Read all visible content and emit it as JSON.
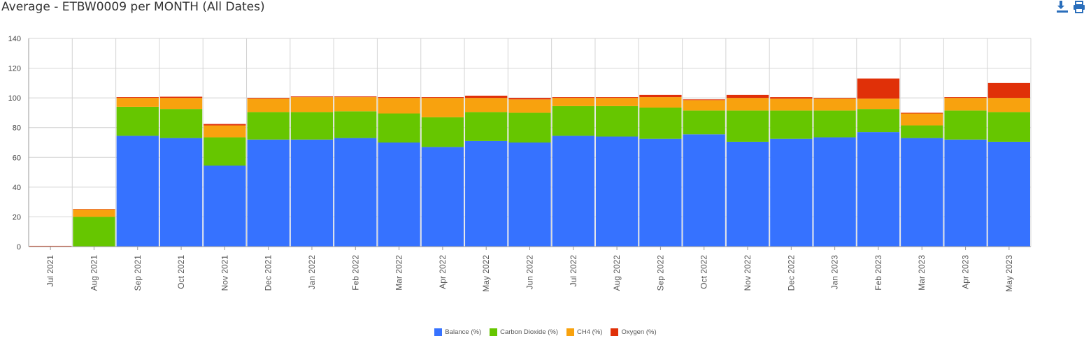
{
  "title": "Average - ETBW0009 per MONTH (All Dates)",
  "toolbar": {
    "download_icon": "download-icon",
    "print_icon": "print-icon",
    "icon_color": "#2a6ebb"
  },
  "chart_data": {
    "type": "bar",
    "stacked": true,
    "title": "Average - ETBW0009 per MONTH (All Dates)",
    "xlabel": "",
    "ylabel": "",
    "ylim": [
      0,
      140
    ],
    "yticks": [
      0,
      20,
      40,
      60,
      80,
      100,
      120,
      140
    ],
    "grid": true,
    "legend_position": "bottom",
    "categories": [
      "Jul 2021",
      "Aug 2021",
      "Sep 2021",
      "Oct 2021",
      "Nov 2021",
      "Dec 2021",
      "Jan 2022",
      "Feb 2022",
      "Mar 2022",
      "Apr 2022",
      "May 2022",
      "Jun 2022",
      "Jul 2022",
      "Aug 2022",
      "Sep 2022",
      "Oct 2022",
      "Nov 2022",
      "Dec 2022",
      "Jan 2023",
      "Feb 2023",
      "Mar 2023",
      "Apr 2023",
      "May 2023"
    ],
    "series": [
      {
        "name": "Balance (%)",
        "color": "#3672ff",
        "values": [
          0,
          0,
          74.5,
          73,
          54.5,
          72,
          72,
          73,
          70,
          67,
          71,
          70,
          74.5,
          74,
          72.5,
          75.5,
          70.5,
          72.5,
          73.5,
          77,
          73,
          72,
          70.5
        ]
      },
      {
        "name": "Carbon Dioxide (%)",
        "color": "#66c600",
        "values": [
          0,
          20,
          19.5,
          19.5,
          19,
          18.5,
          18.5,
          18,
          19.5,
          20,
          19.5,
          20,
          20,
          20.5,
          21,
          16,
          21,
          19,
          18,
          15.5,
          8.5,
          19.5,
          20
        ]
      },
      {
        "name": "CH4 (%)",
        "color": "#f8a20e",
        "values": [
          0,
          5,
          6,
          7.5,
          8,
          9,
          10,
          9.5,
          10.5,
          13,
          9.5,
          9,
          5.5,
          5.5,
          7,
          7,
          8.5,
          8,
          8,
          7,
          8,
          8.5,
          9.5
        ]
      },
      {
        "name": "Oxygen (%)",
        "color": "#e03008",
        "values": [
          0.5,
          0.3,
          0.5,
          0.8,
          1,
          0.5,
          0.5,
          0.5,
          0.5,
          0.5,
          1.5,
          1,
          0.5,
          0.5,
          1.5,
          0.5,
          2,
          1,
          0.5,
          13.5,
          0.5,
          0.5,
          10
        ]
      }
    ]
  }
}
